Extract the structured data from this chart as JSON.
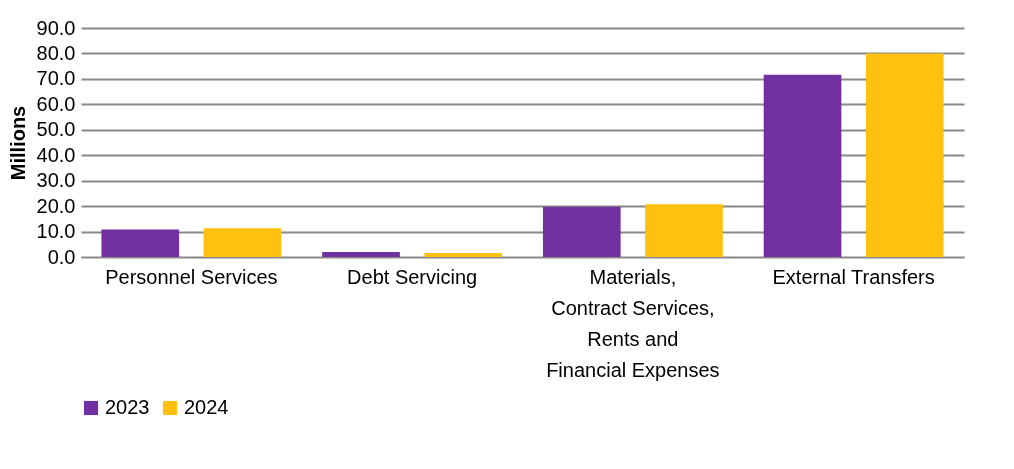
{
  "chart_data": {
    "type": "bar",
    "ylabel": "Millions",
    "categories": [
      "Personnel Services",
      "Debt Servicing",
      "Materials, Contract Services, Rents and Financial Expenses",
      "External Transfers"
    ],
    "series": [
      {
        "name": "2023",
        "color": "#7030a0",
        "values": [
          10.8,
          2.0,
          19.7,
          71.6
        ]
      },
      {
        "name": "2024",
        "color": "#ffc010",
        "values": [
          11.3,
          1.6,
          20.7,
          80.0
        ]
      }
    ],
    "ylim": [
      0,
      90
    ],
    "yticks": [
      {
        "value": 0,
        "label": "0.0"
      },
      {
        "value": 10,
        "label": "10.0"
      },
      {
        "value": 20,
        "label": "20.0"
      },
      {
        "value": 30,
        "label": "30.0"
      },
      {
        "value": 40,
        "label": "40.0"
      },
      {
        "value": 50,
        "label": "50.0"
      },
      {
        "value": 60,
        "label": "60.0"
      },
      {
        "value": 70,
        "label": "70.0"
      },
      {
        "value": 80,
        "label": "80.0"
      },
      {
        "value": 90,
        "label": "90.0"
      }
    ],
    "grid": "y",
    "legend": "bottom"
  }
}
